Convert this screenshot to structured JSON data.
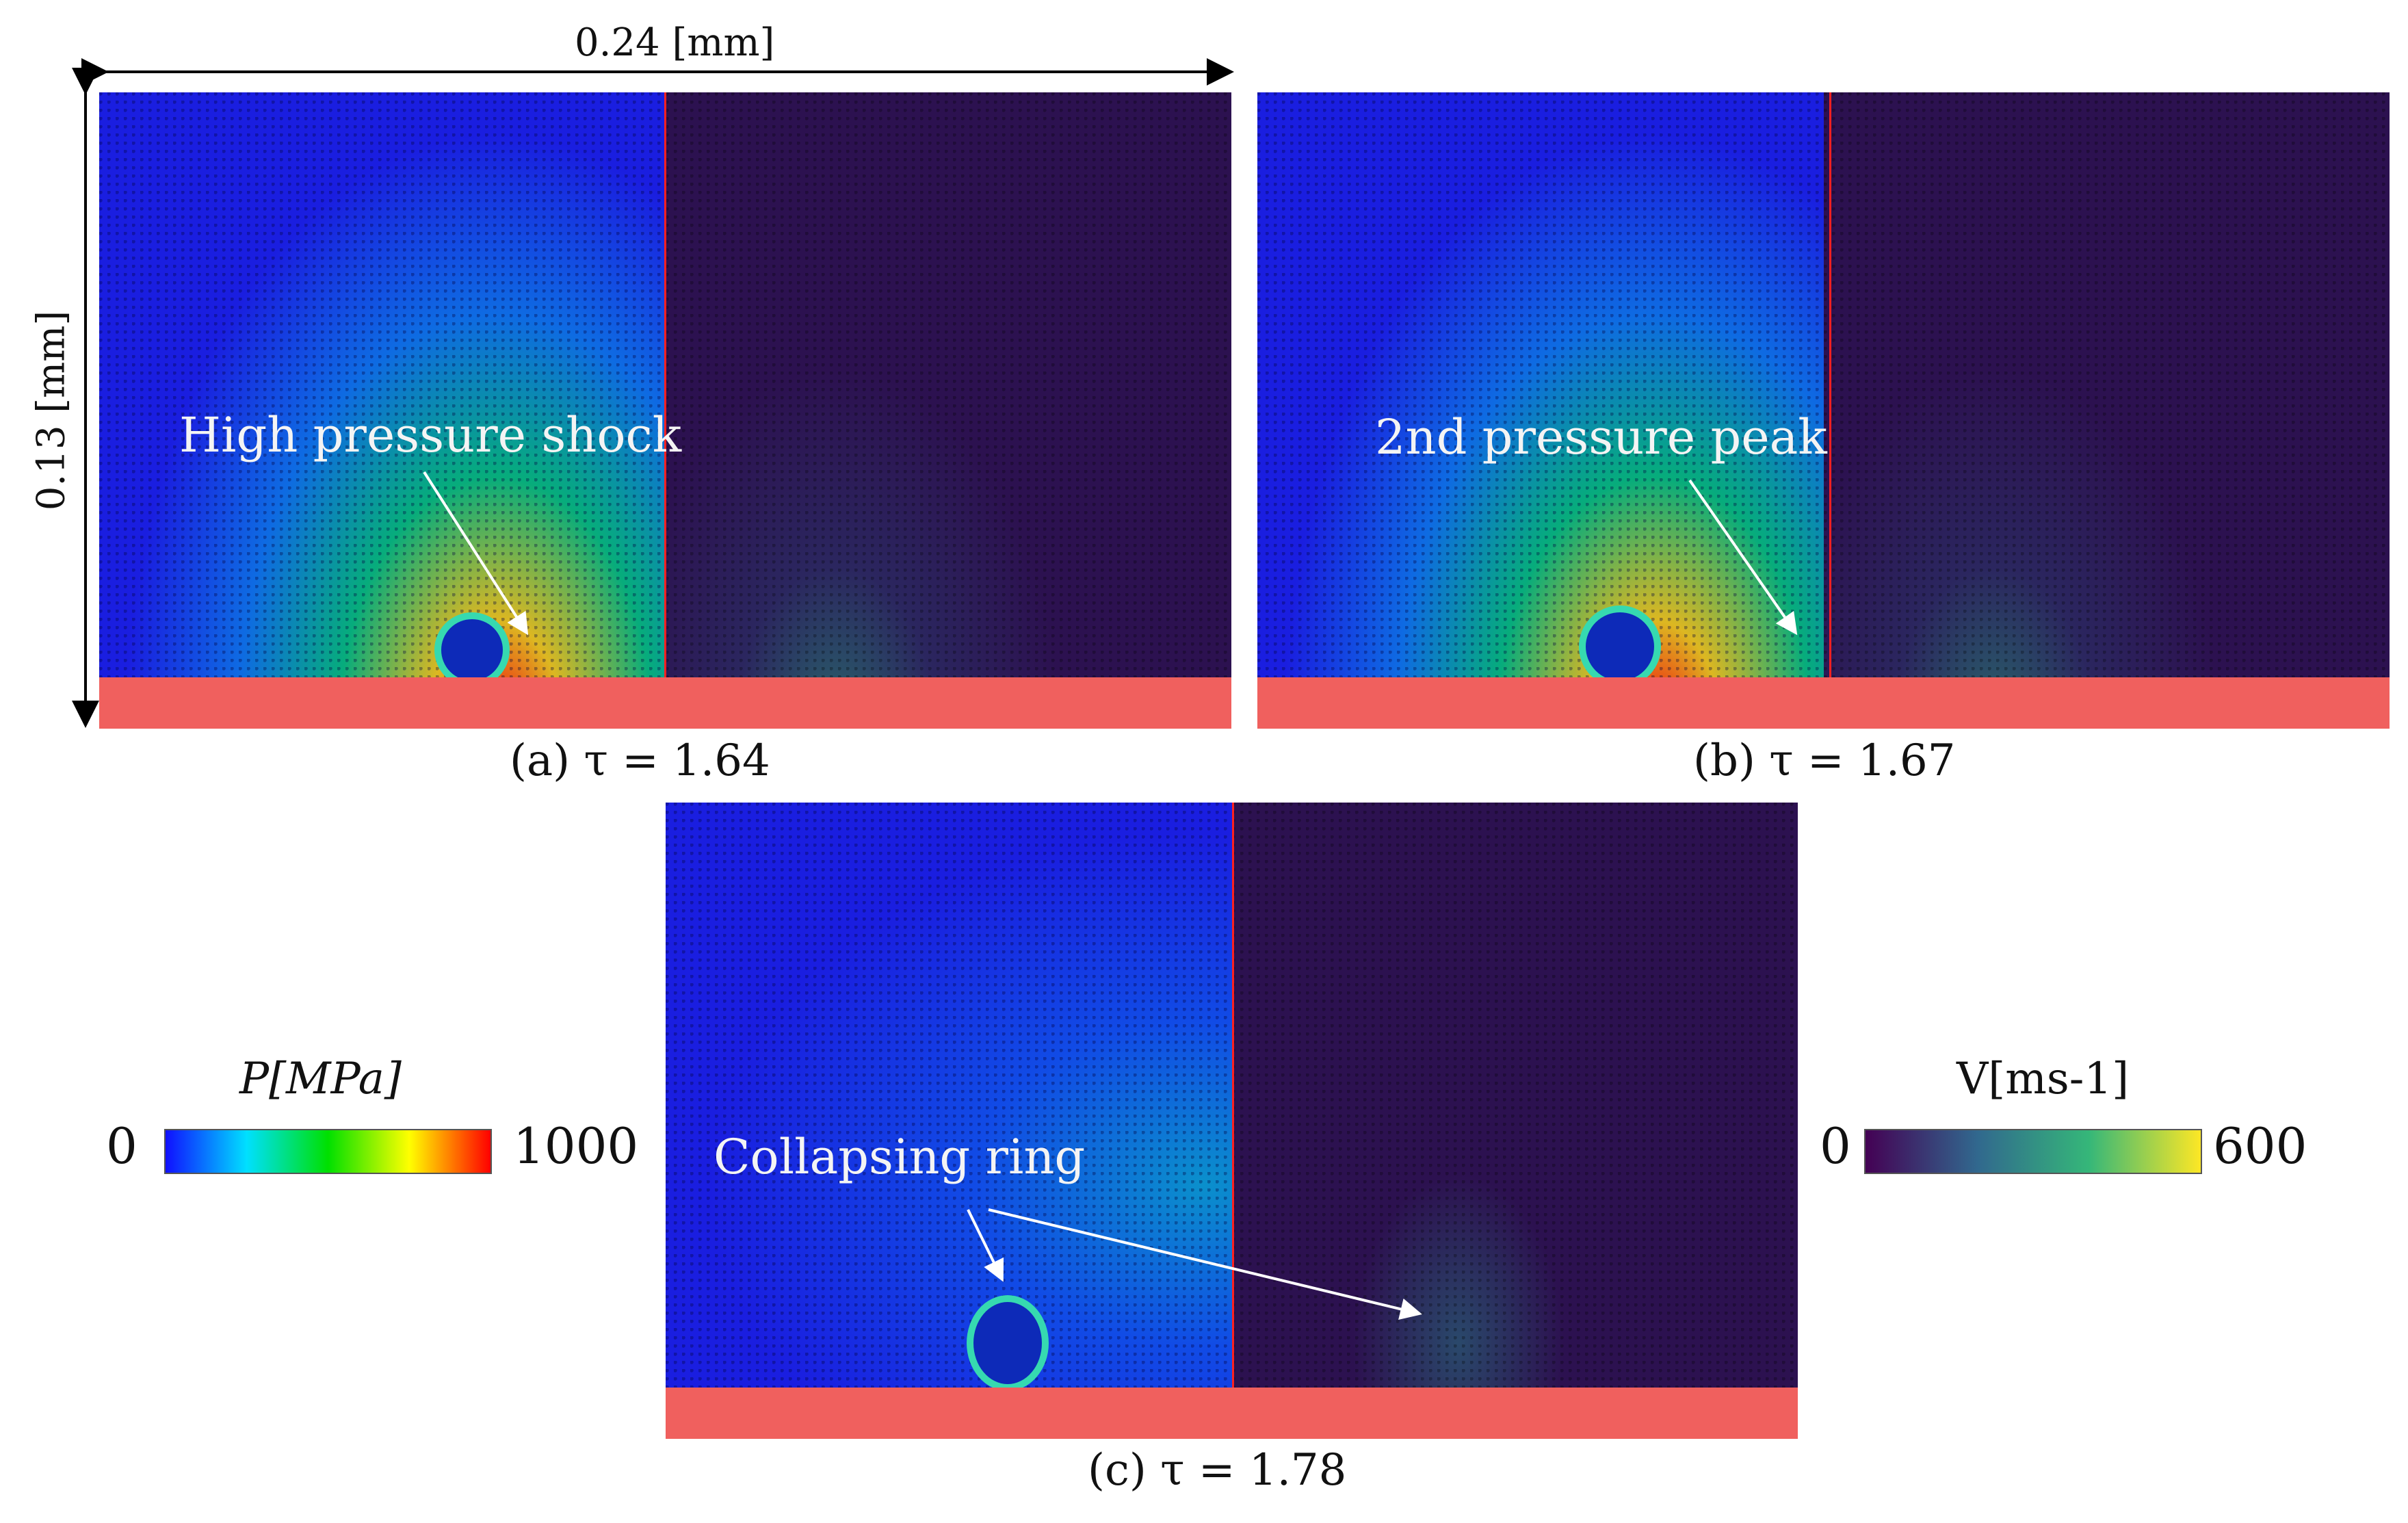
{
  "dimensions": {
    "width_label": "0.24 [mm]",
    "height_label": "0.13 [mm]"
  },
  "panels": [
    {
      "caption": "(a) τ = 1.64",
      "annotation": "High pressure shock"
    },
    {
      "caption": "(b) τ = 1.67",
      "annotation": "2nd pressure peak"
    },
    {
      "caption": "(c) τ = 1.78",
      "annotation": "Collapsing ring"
    }
  ],
  "colorbars": {
    "pressure": {
      "label": "P[MPa]",
      "min": "0",
      "max": "1000",
      "colors": [
        "#1010ff",
        "#00e0ff",
        "#00e000",
        "#ffff00",
        "#ff0000"
      ]
    },
    "velocity": {
      "label": "V[ms-1]",
      "min": "0",
      "max": "600",
      "colors": [
        "#440154",
        "#31688e",
        "#35b779",
        "#fde725"
      ]
    }
  },
  "colors": {
    "wall": "#f0605e",
    "divider": "#ff2020",
    "arrow": "#ffffff"
  }
}
